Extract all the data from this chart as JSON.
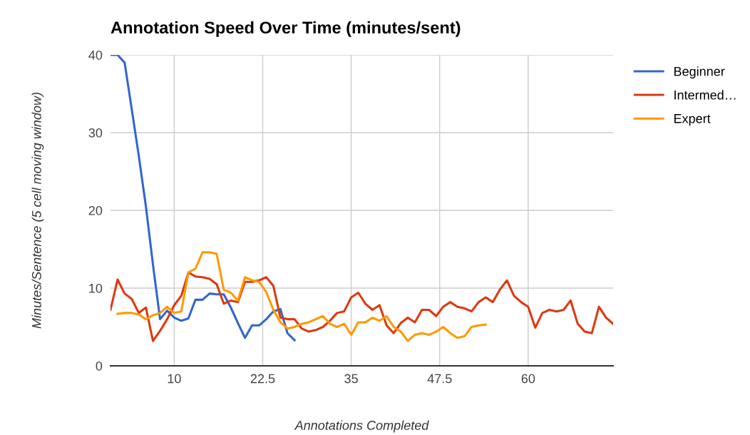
{
  "chart_data": {
    "type": "line",
    "title": "Annotation Speed Over Time (minutes/sent)",
    "xlabel": "Annotations Completed",
    "ylabel": "Minutes/Sentence (5 cell moving window)",
    "xlim": [
      1,
      72
    ],
    "ylim": [
      0,
      40
    ],
    "xticks": [
      10,
      {
        "value": 22.5,
        "label": "22.5"
      },
      35,
      {
        "value": 47.5,
        "label": "47.5"
      },
      60
    ],
    "yticks": [
      0,
      10,
      20,
      30,
      40
    ],
    "grid": true,
    "legend": "top right",
    "marker": "none",
    "line_style": "solid",
    "series": [
      {
        "name": "Beginner",
        "color": "#3366cc",
        "x": [
          1,
          2,
          3,
          4,
          5,
          6,
          7,
          8,
          9,
          10,
          11,
          12,
          13,
          14,
          15,
          16,
          17,
          18,
          19,
          20,
          21,
          22,
          23,
          24,
          25,
          26,
          27
        ],
        "values": [
          40,
          40,
          39,
          33,
          27,
          20.5,
          13,
          6,
          7.1,
          6.2,
          5.8,
          6.1,
          8.5,
          8.5,
          9.3,
          9.2,
          9.2,
          7.5,
          5.5,
          3.6,
          5.2,
          5.2,
          6,
          7,
          7.3,
          4.2,
          3.3
        ]
      },
      {
        "name": "Intermed…",
        "color": "#dc3912",
        "x": [
          1,
          2,
          3,
          4,
          5,
          6,
          7,
          8,
          9,
          10,
          11,
          12,
          13,
          14,
          15,
          16,
          17,
          18,
          19,
          20,
          21,
          22,
          23,
          24,
          25,
          26,
          27,
          28,
          29,
          30,
          31,
          32,
          33,
          34,
          35,
          36,
          37,
          38,
          39,
          40,
          41,
          42,
          43,
          44,
          45,
          46,
          47,
          48,
          49,
          50,
          51,
          52,
          53,
          54,
          55,
          56,
          57,
          58,
          59,
          60,
          61,
          62,
          63,
          64,
          65,
          66,
          67,
          68,
          69,
          70,
          71,
          72
        ],
        "values": [
          7.2,
          11.1,
          9.3,
          8.6,
          6.8,
          7.5,
          3.2,
          4.5,
          6,
          7.8,
          9,
          12,
          11.5,
          11.4,
          11.2,
          10.5,
          8,
          8.4,
          8.2,
          10.8,
          10.8,
          11,
          11.4,
          10.3,
          6.2,
          6,
          6,
          4.8,
          4.4,
          4.6,
          5,
          5.8,
          6.8,
          7,
          8.8,
          9.4,
          8,
          7.2,
          7.8,
          5.2,
          4.2,
          5.5,
          6.2,
          5.6,
          7.2,
          7.2,
          6.4,
          7.6,
          8.2,
          7.6,
          7.4,
          7,
          8.2,
          8.8,
          8.2,
          9.8,
          11,
          9,
          8.2,
          7.6,
          4.9,
          6.8,
          7.2,
          7,
          7.2,
          8.4,
          5.4,
          4.4,
          4.2,
          7.6,
          6.2,
          5.4
        ]
      },
      {
        "name": "Expert",
        "color": "#ff9900",
        "x": [
          2,
          3,
          4,
          5,
          6,
          7,
          8,
          9,
          10,
          11,
          12,
          13,
          14,
          15,
          16,
          17,
          18,
          19,
          20,
          21,
          22,
          23,
          24,
          25,
          26,
          27,
          28,
          29,
          30,
          31,
          32,
          33,
          34,
          35,
          36,
          37,
          38,
          39,
          40,
          41,
          42,
          43,
          44,
          45,
          46,
          47,
          48,
          49,
          50,
          51,
          52,
          53,
          54
        ],
        "values": [
          6.7,
          6.8,
          6.8,
          6.6,
          6,
          6.5,
          6.8,
          7.6,
          6.8,
          7,
          12,
          12.5,
          14.6,
          14.6,
          14.4,
          9.8,
          9.4,
          8.4,
          11.4,
          11,
          10.8,
          9.5,
          7.2,
          5.6,
          4.8,
          5,
          5.4,
          5.6,
          6,
          6.4,
          5.4,
          5,
          5.4,
          4,
          5.6,
          5.6,
          6.2,
          5.8,
          6.4,
          5,
          4.4,
          3.2,
          4,
          4.2,
          4,
          4.4,
          5,
          4.2,
          3.6,
          3.8,
          5,
          5.2,
          5.3
        ]
      }
    ]
  }
}
